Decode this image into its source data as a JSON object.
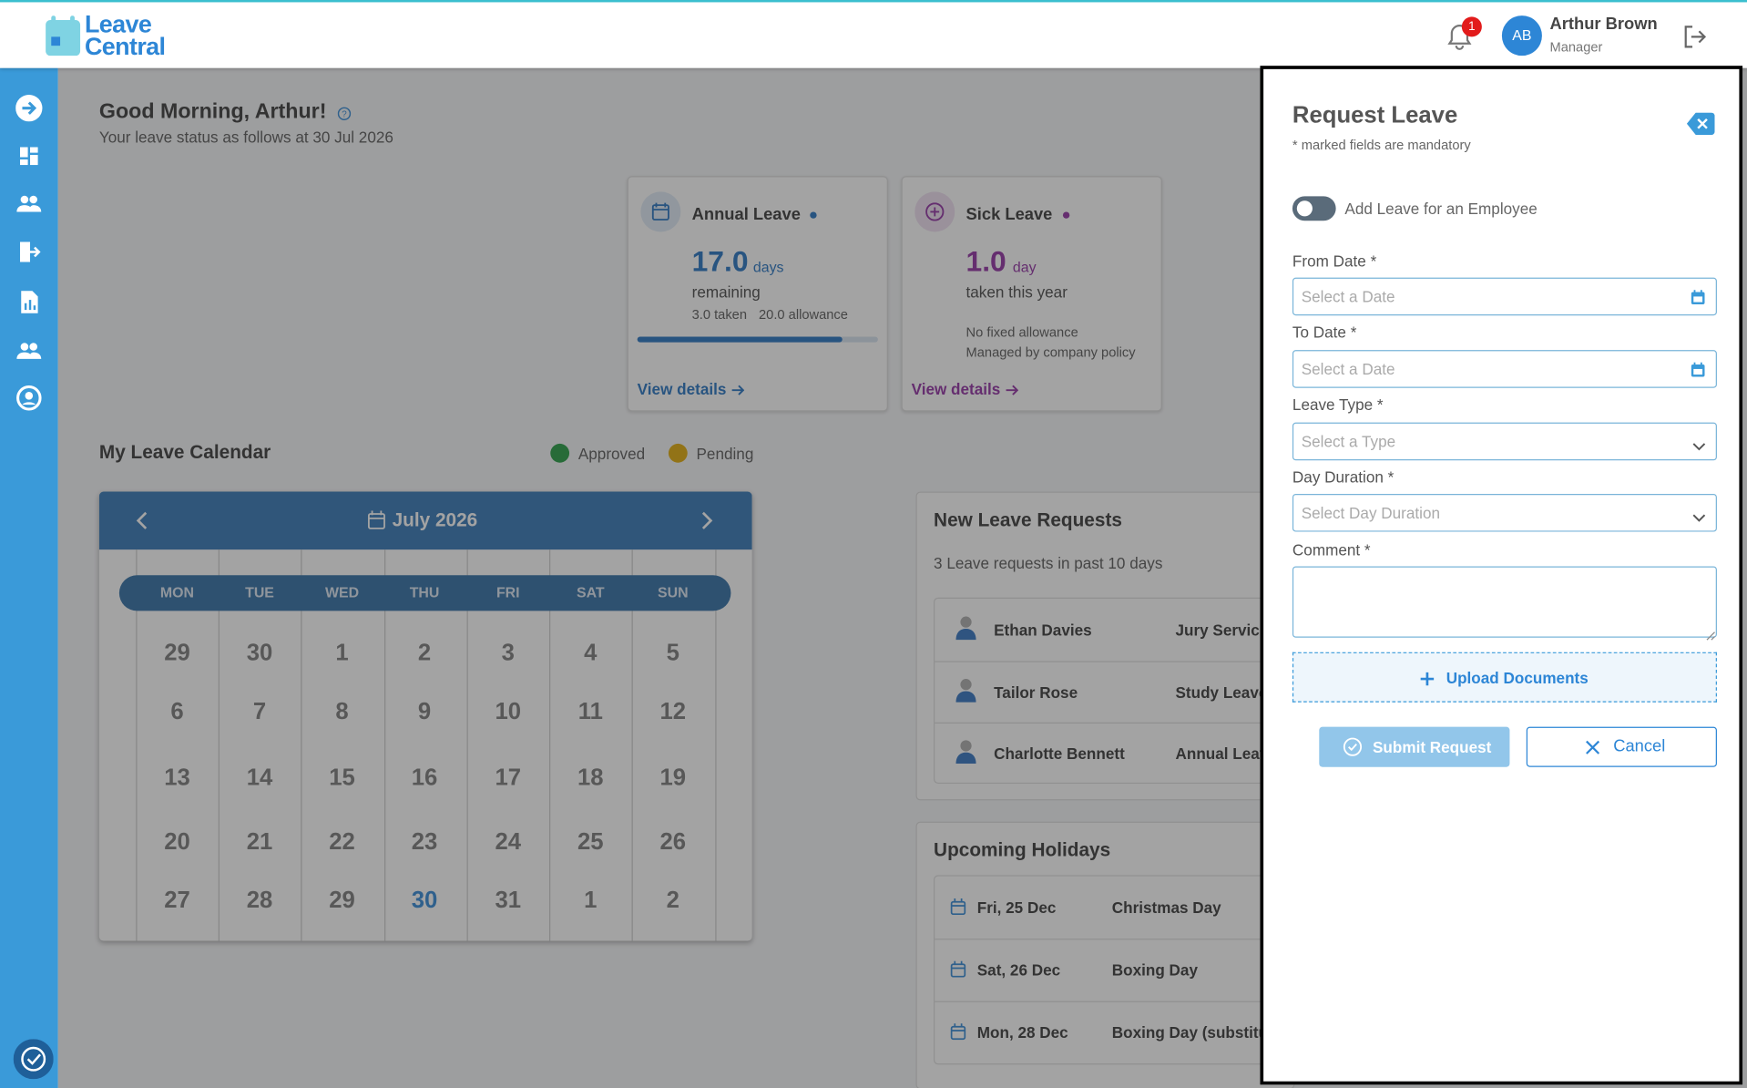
{
  "header": {
    "logo": [
      "Leave",
      "Central"
    ],
    "notifications": "1",
    "user": {
      "initials": "AB",
      "name": "Arthur Brown",
      "role": "Manager"
    }
  },
  "greeting": {
    "title": "Good Morning, Arthur!",
    "subtitle": "Your leave status as follows at 30 Jul 2026"
  },
  "cards": [
    {
      "title": "Annual Leave",
      "color": "#1f6fc0",
      "amount": "17.0",
      "unit": "days",
      "caption": "remaining",
      "details": [
        "3.0 taken",
        "20.0 allowance"
      ],
      "progress": 85,
      "link": "View details"
    },
    {
      "title": "Sick Leave",
      "color": "#8e2ba0",
      "amount": "1.0",
      "unit": "day",
      "caption": "taken this year",
      "notes": [
        "No fixed allowance",
        "Managed by company policy"
      ],
      "link": "View details"
    }
  ],
  "calendar": {
    "title": "My Leave Calendar",
    "legend": [
      {
        "name": "Approved",
        "color": "#1e9a3c"
      },
      {
        "name": "Pending",
        "color": "#e0a800"
      }
    ],
    "month": "July 2026",
    "weekdays": [
      "MON",
      "TUE",
      "WED",
      "THU",
      "FRI",
      "SAT",
      "SUN"
    ],
    "weeks": [
      [
        29,
        30,
        1,
        2,
        3,
        4,
        5
      ],
      [
        6,
        7,
        8,
        9,
        10,
        11,
        12
      ],
      [
        13,
        14,
        15,
        16,
        17,
        18,
        19
      ],
      [
        20,
        21,
        22,
        23,
        24,
        25,
        26
      ],
      [
        27,
        28,
        29,
        30,
        31,
        1,
        2
      ]
    ],
    "today": 30
  },
  "requests": {
    "title": "New Leave Requests",
    "subtitle": "3 Leave requests in past 10 days",
    "rows": [
      {
        "name": "Ethan Davies",
        "type": "Jury Service"
      },
      {
        "name": "Tailor Rose",
        "type": "Study Leave"
      },
      {
        "name": "Charlotte Bennett",
        "type": "Annual Leave"
      }
    ]
  },
  "holidays": {
    "title": "Upcoming Holidays",
    "rows": [
      {
        "date": "Fri, 25 Dec",
        "name": "Christmas Day"
      },
      {
        "date": "Sat, 26 Dec",
        "name": "Boxing Day"
      },
      {
        "date": "Mon, 28 Dec",
        "name": "Boxing Day (substitute day)"
      }
    ]
  },
  "drawer": {
    "title": "Request Leave",
    "note": "* marked fields are mandatory",
    "toggle": "Add Leave for an Employee",
    "fields": [
      {
        "label": "From Date *",
        "placeholder": "Select a Date",
        "kind": "date"
      },
      {
        "label": "To Date *",
        "placeholder": "Select a Date",
        "kind": "date"
      },
      {
        "label": "Leave Type *",
        "placeholder": "Select a Type",
        "kind": "select"
      },
      {
        "label": "Day Duration *",
        "placeholder": "Select Day Duration",
        "kind": "select"
      },
      {
        "label": "Comment *",
        "kind": "textarea"
      }
    ],
    "upload": "Upload Documents",
    "submit": "Submit Request",
    "cancel": "Cancel"
  }
}
